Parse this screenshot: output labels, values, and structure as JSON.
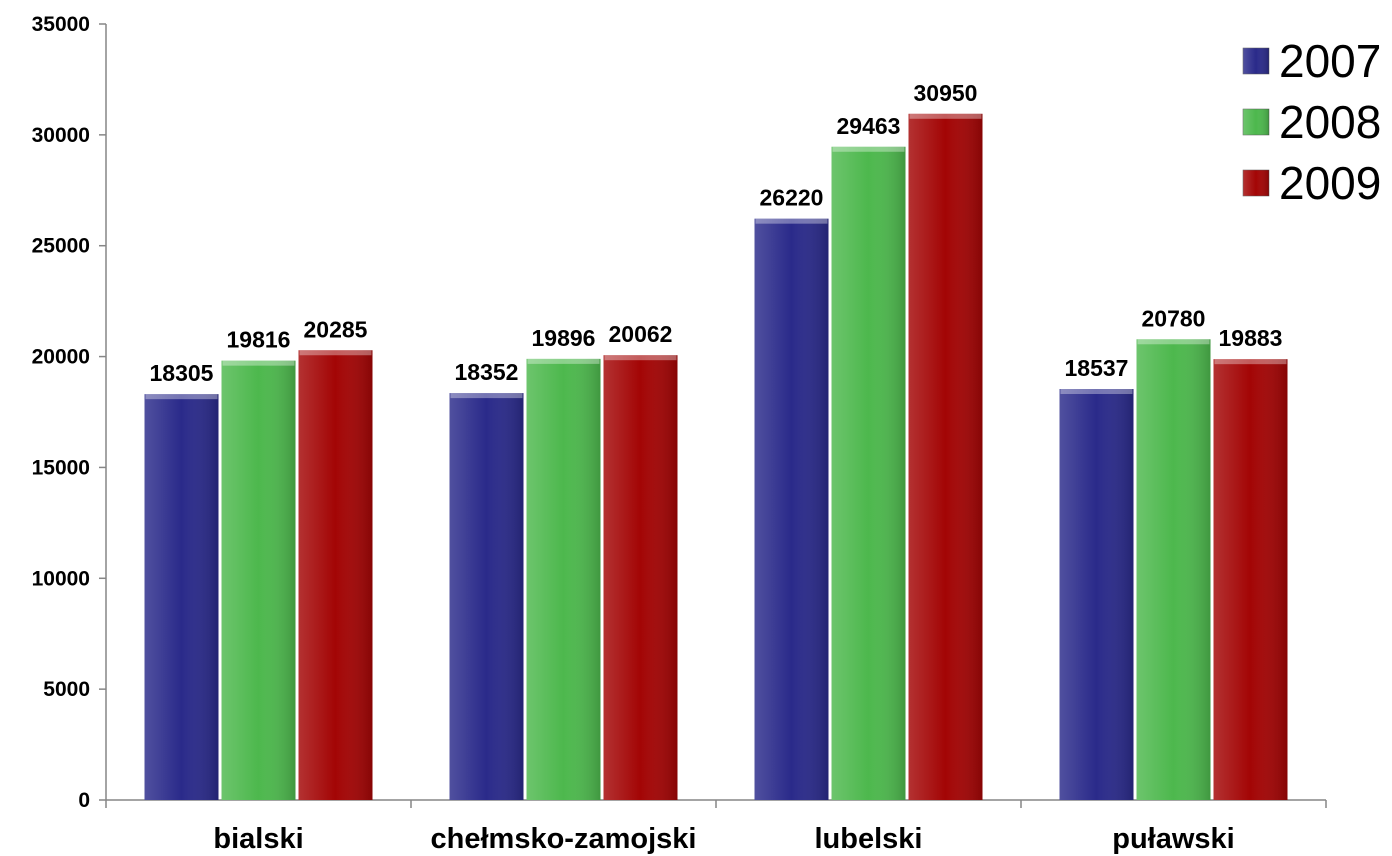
{
  "chart_data": {
    "type": "bar",
    "categories": [
      "bialski",
      "chełmsko-zamojski",
      "lubelski",
      "puławski"
    ],
    "series": [
      {
        "name": "2007",
        "color": "#2a2a8a",
        "values": [
          18305,
          18352,
          26220,
          18537
        ]
      },
      {
        "name": "2008",
        "color": "#4db84d",
        "values": [
          19816,
          19896,
          29463,
          20780
        ]
      },
      {
        "name": "2009",
        "color": "#a30505",
        "values": [
          20285,
          20062,
          30950,
          19883
        ]
      }
    ],
    "ylim": [
      0,
      35000
    ],
    "yticks": [
      0,
      5000,
      10000,
      15000,
      20000,
      25000,
      30000,
      35000
    ],
    "legend_position": "top-right",
    "grid": false
  }
}
